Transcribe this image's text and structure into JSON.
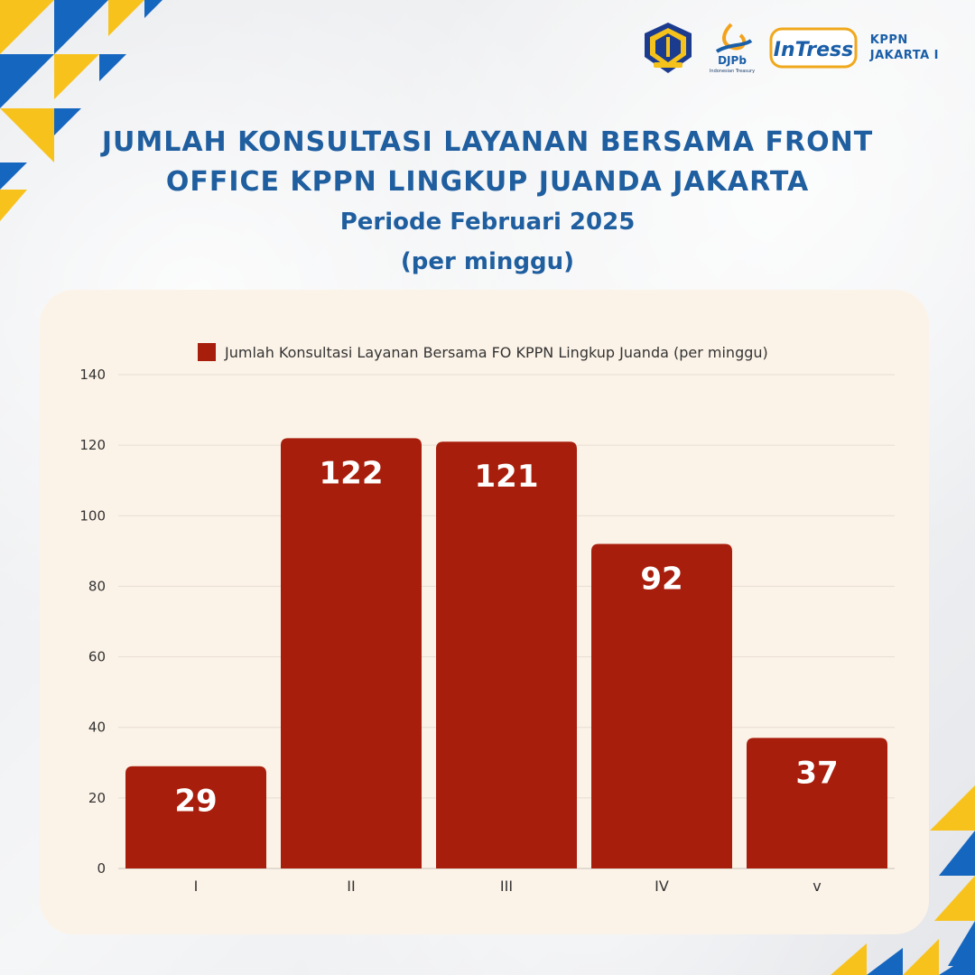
{
  "header": {
    "djpb_label": "DJPb",
    "djpb_tagline": "Indonesian Treasury",
    "intress_label": "InTress",
    "kppn_line1": "KPPN",
    "kppn_line2": "JAKARTA I"
  },
  "title": {
    "line1": "JUMLAH KONSULTASI LAYANAN BERSAMA FRONT",
    "line2": "OFFICE KPPN LINGKUP JUANDA JAKARTA",
    "line3": "Periode Februari 2025",
    "line4": "(per minggu)"
  },
  "colors": {
    "bar": "#a81e0c",
    "title": "#1f5e9f",
    "card": "#fcf3e8",
    "accent_yellow": "#f8c21d",
    "accent_blue": "#1566bf"
  },
  "chart_data": {
    "type": "bar",
    "categories": [
      "I",
      "II",
      "III",
      "IV",
      "v"
    ],
    "series": [
      {
        "name": "Jumlah Konsultasi Layanan Bersama FO KPPN Lingkup Juanda (per minggu)",
        "values": [
          29,
          122,
          121,
          92,
          37
        ]
      }
    ],
    "ylim": [
      0,
      140
    ],
    "yticks": [
      0,
      20,
      40,
      60,
      80,
      100,
      120,
      140
    ],
    "grid": true,
    "legend": "top",
    "data_labels": true
  }
}
